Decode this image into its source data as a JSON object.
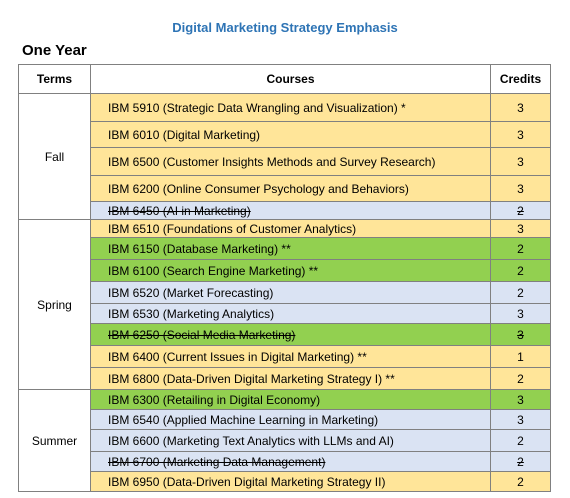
{
  "title": "Digital Marketing Strategy Emphasis",
  "subtitle": "One Year",
  "headers": {
    "terms": "Terms",
    "courses": "Courses",
    "credits": "Credits"
  },
  "colors": {
    "title": "#2e74b5",
    "orange": "#ffe599",
    "blue": "#dae3f3",
    "green": "#92d050"
  },
  "terms": [
    {
      "name": "Fall",
      "rows": [
        {
          "course": "IBM 5910 (Strategic Data Wrangling and Visualization) *",
          "credits": "3",
          "color": "orange",
          "struck": false
        },
        {
          "course": "IBM 6010 (Digital Marketing)",
          "credits": "3",
          "color": "orange",
          "struck": false
        },
        {
          "course": "IBM 6500 (Customer Insights Methods and Survey Research)",
          "credits": "3",
          "color": "orange",
          "struck": false
        },
        {
          "course": "IBM 6200 (Online Consumer Psychology and Behaviors)",
          "credits": "3",
          "color": "orange",
          "struck": false
        },
        {
          "course": "IBM 6450 (AI in Marketing)",
          "credits": "2",
          "color": "blue",
          "struck": true
        }
      ]
    },
    {
      "name": "Spring",
      "rows": [
        {
          "course": "IBM 6510 (Foundations of Customer Analytics)",
          "credits": "3",
          "color": "orange",
          "struck": false
        },
        {
          "course": "IBM 6150 (Database Marketing) **",
          "credits": "2",
          "color": "green",
          "struck": false
        },
        {
          "course": "IBM 6100 (Search Engine Marketing) **",
          "credits": "2",
          "color": "green",
          "struck": false
        },
        {
          "course": "IBM 6520 (Market Forecasting)",
          "credits": "2",
          "color": "blue",
          "struck": false
        },
        {
          "course": "IBM 6530 (Marketing Analytics)",
          "credits": "3",
          "color": "blue",
          "struck": false
        },
        {
          "course": "IBM 6250 (Social Media Marketing)",
          "credits": "3",
          "color": "green",
          "struck": true
        },
        {
          "course": "IBM 6400 (Current Issues in Digital Marketing) **",
          "credits": "1",
          "color": "orange",
          "struck": false
        },
        {
          "course": "IBM 6800 (Data-Driven Digital Marketing Strategy I) **",
          "credits": "2",
          "color": "orange",
          "struck": false
        }
      ]
    },
    {
      "name": "Summer",
      "rows": [
        {
          "course": "IBM 6300 (Retailing in Digital Economy)",
          "credits": "3",
          "color": "green",
          "struck": false
        },
        {
          "course": "IBM 6540 (Applied Machine Learning in Marketing)",
          "credits": "3",
          "color": "blue",
          "struck": false
        },
        {
          "course": "IBM 6600 (Marketing Text Analytics with LLMs and AI)",
          "credits": "2",
          "color": "blue",
          "struck": false
        },
        {
          "course": "IBM 6700 (Marketing Data Management)",
          "credits": "2",
          "color": "blue",
          "struck": true
        },
        {
          "course": "IBM 6950 (Data-Driven Digital Marketing Strategy II)",
          "credits": "2",
          "color": "orange",
          "struck": false
        }
      ]
    }
  ]
}
